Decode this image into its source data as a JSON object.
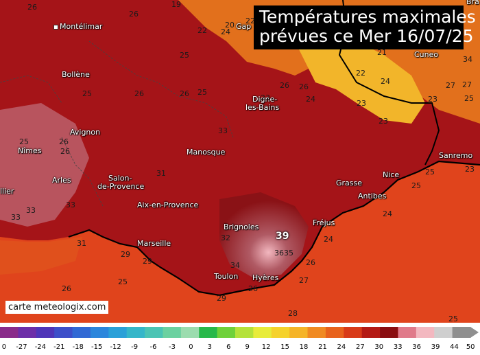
{
  "title": {
    "line1": "Températures maximales",
    "line2": "prévues ce Mer 16/07/25"
  },
  "credit": "carte meteologix.com",
  "cities": [
    {
      "name": "Montélimar"
    },
    {
      "name": "Gap"
    },
    {
      "name": "Bollène"
    },
    {
      "name": "Digne-"
    },
    {
      "name": "les-Bains"
    },
    {
      "name": "Cuneo"
    },
    {
      "name": "Avignon"
    },
    {
      "name": "Nîmes"
    },
    {
      "name": "Manosque"
    },
    {
      "name": "Sanremo"
    },
    {
      "name": "Arles"
    },
    {
      "name": "Salon-"
    },
    {
      "name": "de-Provence"
    },
    {
      "name": "Nice"
    },
    {
      "name": "Grasse"
    },
    {
      "name": "Antibes"
    },
    {
      "name": "Aix-en-Provence"
    },
    {
      "name": "Fréjus"
    },
    {
      "name": "Brignoles"
    },
    {
      "name": "Marseille"
    },
    {
      "name": "Toulon"
    },
    {
      "name": "Hyères"
    },
    {
      "name": "llier"
    },
    {
      "name": "Bra"
    }
  ],
  "max_temp_label": "39",
  "temperature_labels": [
    "26",
    "26",
    "25",
    "19",
    "20",
    "22",
    "24",
    "22",
    "25",
    "21",
    "27",
    "22",
    "24",
    "34",
    "27",
    "25",
    "26",
    "23",
    "26",
    "25",
    "26",
    "24",
    "23",
    "23",
    "23",
    "25",
    "23",
    "33",
    "26",
    "31",
    "26",
    "25",
    "24",
    "33",
    "33",
    "24",
    "25",
    "26",
    "33",
    "31",
    "29",
    "32",
    "29",
    "36",
    "35",
    "34",
    "27",
    "26",
    "29",
    "25",
    "26",
    "26",
    "28",
    "25"
  ],
  "color_scale": {
    "ticks": [
      "0",
      "-27",
      "-24",
      "-21",
      "-18",
      "-15",
      "-12",
      "-9",
      "-6",
      "-3",
      "0",
      "3",
      "6",
      "9",
      "12",
      "15",
      "18",
      "21",
      "24",
      "27",
      "30",
      "33",
      "36",
      "39",
      "44",
      "50"
    ],
    "colors": [
      "#8a2b8a",
      "#6d2ea8",
      "#4f35b8",
      "#3d4fc9",
      "#3169d4",
      "#2b86dc",
      "#2aa0d8",
      "#35b6c9",
      "#4bc4b4",
      "#6bd1a0",
      "#9bdcae",
      "#28b84a",
      "#6fd13a",
      "#b5e23a",
      "#e8ec3a",
      "#f5d22c",
      "#f5b428",
      "#f08a22",
      "#e8621c",
      "#d83a18",
      "#b41a14",
      "#8a0d10",
      "#e07a8a",
      "#f3b8c0",
      "#cfcfcf",
      "#8f8f8f"
    ]
  }
}
